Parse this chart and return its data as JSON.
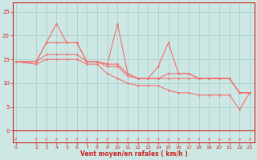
{
  "bg_color": "#cde8e4",
  "grid_color": "#b0d4d0",
  "line_color": "#f07070",
  "xlabel": "Vent moyen/en rafales ( km/h )",
  "xlabel_color": "#cc2222",
  "tick_color": "#cc2222",
  "x_ticks": [
    0,
    2,
    3,
    4,
    5,
    6,
    7,
    8,
    9,
    10,
    11,
    12,
    13,
    14,
    15,
    16,
    17,
    18,
    19,
    20,
    21,
    22,
    23
  ],
  "ylim": [
    -2.5,
    27
  ],
  "xlim": [
    -0.3,
    23.5
  ],
  "yticks": [
    0,
    5,
    10,
    15,
    20,
    25
  ],
  "series1_x": [
    0,
    2,
    3,
    4,
    5,
    6,
    7,
    8,
    9,
    10,
    11,
    12,
    13,
    14,
    15,
    16,
    17,
    18,
    19,
    20,
    21,
    22,
    23
  ],
  "series1_y": [
    14.5,
    14.5,
    18.5,
    22.5,
    18.5,
    18.5,
    14.5,
    14.5,
    14.0,
    22.5,
    12.0,
    11.0,
    11.0,
    13.5,
    18.5,
    12.0,
    12.0,
    11.0,
    11.0,
    11.0,
    11.0,
    8.0,
    8.0
  ],
  "series2_x": [
    0,
    2,
    3,
    4,
    5,
    6,
    7,
    8,
    9,
    10,
    11,
    12,
    13,
    14,
    15,
    16,
    17,
    18,
    19,
    20,
    21,
    22,
    23
  ],
  "series2_y": [
    14.5,
    14.5,
    18.5,
    18.5,
    18.5,
    18.5,
    14.5,
    14.5,
    14.0,
    14.0,
    12.0,
    11.0,
    11.0,
    11.0,
    12.0,
    12.0,
    12.0,
    11.0,
    11.0,
    11.0,
    11.0,
    8.0,
    8.0
  ],
  "series3_x": [
    0,
    2,
    3,
    4,
    5,
    6,
    7,
    8,
    9,
    10,
    11,
    12,
    13,
    14,
    15,
    16,
    17,
    18,
    19,
    20,
    21,
    22,
    23
  ],
  "series3_y": [
    14.5,
    14.5,
    16.0,
    16.0,
    16.0,
    16.0,
    14.5,
    14.5,
    13.5,
    13.5,
    11.5,
    11.0,
    11.0,
    11.0,
    11.0,
    11.0,
    11.0,
    11.0,
    11.0,
    11.0,
    11.0,
    8.0,
    8.0
  ],
  "series4_x": [
    0,
    2,
    3,
    4,
    5,
    6,
    7,
    8,
    9,
    10,
    11,
    12,
    13,
    14,
    15,
    16,
    17,
    18,
    19,
    20,
    21,
    22,
    23
  ],
  "series4_y": [
    14.5,
    14.0,
    15.0,
    15.0,
    15.0,
    15.0,
    14.0,
    14.0,
    12.0,
    11.0,
    10.0,
    9.5,
    9.5,
    9.5,
    8.5,
    8.0,
    8.0,
    7.5,
    7.5,
    7.5,
    7.5,
    4.5,
    8.0
  ],
  "arrow_angles": [
    45,
    45,
    40,
    40,
    35,
    35,
    30,
    25,
    20,
    20,
    15,
    15,
    10,
    10,
    5,
    5,
    5,
    0,
    0,
    0,
    0,
    0,
    0
  ]
}
